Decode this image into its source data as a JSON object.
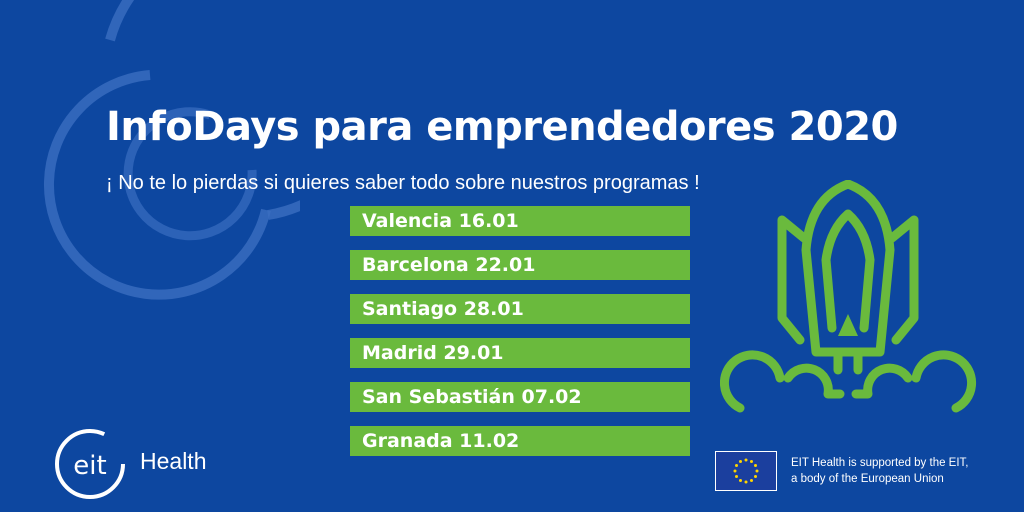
{
  "title": "InfoDays para emprendedores 2020",
  "subtitle": "¡ No te lo pierdas si quieres saber todo sobre nuestros programas !",
  "events": [
    "Valencia 16.01",
    "Barcelona 22.01",
    "Santiago 28.01",
    "Madrid 29.01",
    "San Sebastián 07.02",
    "Granada 11.02"
  ],
  "logo": {
    "mark": "eit",
    "name": "Health"
  },
  "eu_notice": {
    "line1": "EIT Health is supported by the EIT,",
    "line2": "a body of the European Union"
  },
  "icons": [
    "rocket-icon",
    "eu-flag-icon",
    "eit-logo-icon"
  ],
  "colors": {
    "background": "#0d47a0",
    "accent_green": "#6aba3d",
    "ring": "#3b6ec0",
    "eu_blue": "#1b3f9e",
    "eu_stars": "#ffd500"
  }
}
